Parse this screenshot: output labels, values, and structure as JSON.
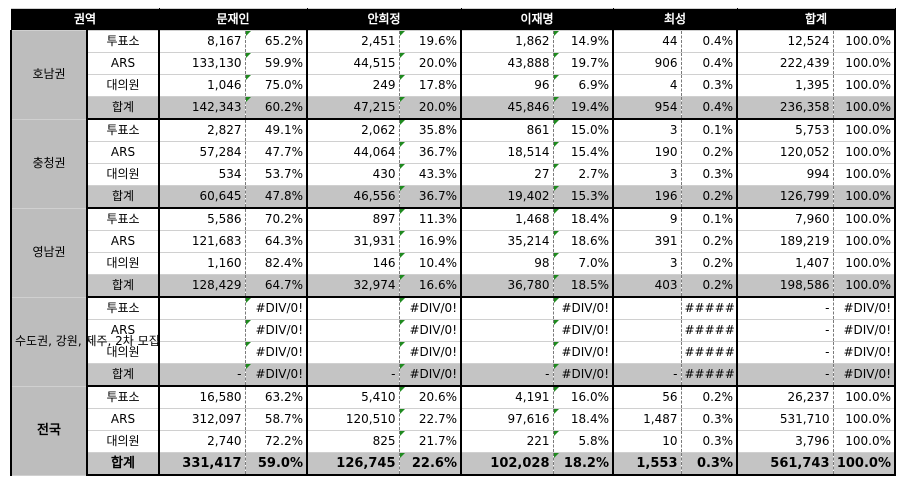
{
  "header": {
    "region": "권역",
    "candidates": [
      "문재인",
      "안희정",
      "이재명",
      "최성",
      "합계"
    ]
  },
  "groups": [
    {
      "name": "호남권",
      "rows": [
        {
          "type": "투표소",
          "cells": [
            "8,167",
            "65.2%",
            "2,451",
            "19.6%",
            "1,862",
            "14.9%",
            "44",
            "0.4%",
            "12,524",
            "100.0%"
          ]
        },
        {
          "type": "ARS",
          "cells": [
            "133,130",
            "59.9%",
            "44,515",
            "20.0%",
            "43,888",
            "19.7%",
            "906",
            "0.4%",
            "222,439",
            "100.0%"
          ]
        },
        {
          "type": "대의원",
          "cells": [
            "1,046",
            "75.0%",
            "249",
            "17.8%",
            "96",
            "6.9%",
            "4",
            "0.3%",
            "1,395",
            "100.0%"
          ]
        },
        {
          "type": "합계",
          "cells": [
            "142,343",
            "60.2%",
            "47,215",
            "20.0%",
            "45,846",
            "19.4%",
            "954",
            "0.4%",
            "236,358",
            "100.0%"
          ]
        }
      ]
    },
    {
      "name": "충청권",
      "rows": [
        {
          "type": "투표소",
          "cells": [
            "2,827",
            "49.1%",
            "2,062",
            "35.8%",
            "861",
            "15.0%",
            "3",
            "0.1%",
            "5,753",
            "100.0%"
          ]
        },
        {
          "type": "ARS",
          "cells": [
            "57,284",
            "47.7%",
            "44,064",
            "36.7%",
            "18,514",
            "15.4%",
            "190",
            "0.2%",
            "120,052",
            "100.0%"
          ]
        },
        {
          "type": "대의원",
          "cells": [
            "534",
            "53.7%",
            "430",
            "43.3%",
            "27",
            "2.7%",
            "3",
            "0.3%",
            "994",
            "100.0%"
          ]
        },
        {
          "type": "합계",
          "cells": [
            "60,645",
            "47.8%",
            "46,556",
            "36.7%",
            "19,402",
            "15.3%",
            "196",
            "0.2%",
            "126,799",
            "100.0%"
          ]
        }
      ]
    },
    {
      "name": "영남권",
      "rows": [
        {
          "type": "투표소",
          "cells": [
            "5,586",
            "70.2%",
            "897",
            "11.3%",
            "1,468",
            "18.4%",
            "9",
            "0.1%",
            "7,960",
            "100.0%"
          ]
        },
        {
          "type": "ARS",
          "cells": [
            "121,683",
            "64.3%",
            "31,931",
            "16.9%",
            "35,214",
            "18.6%",
            "391",
            "0.2%",
            "189,219",
            "100.0%"
          ]
        },
        {
          "type": "대의원",
          "cells": [
            "1,160",
            "82.4%",
            "146",
            "10.4%",
            "98",
            "7.0%",
            "3",
            "0.2%",
            "1,407",
            "100.0%"
          ]
        },
        {
          "type": "합계",
          "cells": [
            "128,429",
            "64.7%",
            "32,974",
            "16.6%",
            "36,780",
            "18.5%",
            "403",
            "0.2%",
            "198,586",
            "100.0%"
          ]
        }
      ]
    },
    {
      "name": "수도권, 강원, 제주, 2차 모집",
      "rows": [
        {
          "type": "투표소",
          "cells": [
            "",
            "#DIV/0!",
            "",
            "#DIV/0!",
            "",
            "#DIV/0!",
            "",
            "#####",
            "-",
            "#DIV/0!"
          ]
        },
        {
          "type": "ARS",
          "cells": [
            "",
            "#DIV/0!",
            "",
            "#DIV/0!",
            "",
            "#DIV/0!",
            "",
            "#####",
            "-",
            "#DIV/0!"
          ]
        },
        {
          "type": "대의원",
          "cells": [
            "",
            "#DIV/0!",
            "",
            "#DIV/0!",
            "",
            "#DIV/0!",
            "",
            "#####",
            "-",
            "#DIV/0!"
          ]
        },
        {
          "type": "합계",
          "cells": [
            "-",
            "#DIV/0!",
            "-",
            "#DIV/0!",
            "-",
            "#DIV/0!",
            "-",
            "#####",
            "-",
            "#DIV/0!"
          ]
        }
      ]
    },
    {
      "name": "전국",
      "national": true,
      "rows": [
        {
          "type": "투표소",
          "cells": [
            "16,580",
            "63.2%",
            "5,410",
            "20.6%",
            "4,191",
            "16.0%",
            "56",
            "0.2%",
            "26,237",
            "100.0%"
          ]
        },
        {
          "type": "ARS",
          "cells": [
            "312,097",
            "58.7%",
            "120,510",
            "22.7%",
            "97,616",
            "18.4%",
            "1,487",
            "0.3%",
            "531,710",
            "100.0%"
          ]
        },
        {
          "type": "대의원",
          "cells": [
            "2,740",
            "72.2%",
            "825",
            "21.7%",
            "221",
            "5.8%",
            "10",
            "0.3%",
            "3,796",
            "100.0%"
          ]
        },
        {
          "type": "합계",
          "cells": [
            "331,417",
            "59.0%",
            "126,745",
            "22.6%",
            "102,028",
            "18.2%",
            "1,553",
            "0.3%",
            "561,743",
            "100.0%"
          ]
        }
      ]
    }
  ]
}
